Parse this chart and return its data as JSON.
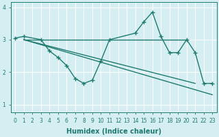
{
  "bg_color": "#d4eef2",
  "grid_color": "#c0dde2",
  "line_color": "#1e7a6e",
  "xlabel": "Humidex (Indice chaleur)",
  "xlim": [
    -0.5,
    23.5
  ],
  "ylim": [
    0.75,
    4.15
  ],
  "yticks": [
    1,
    2,
    3,
    4
  ],
  "xticks": [
    0,
    1,
    2,
    3,
    4,
    5,
    6,
    7,
    8,
    9,
    10,
    11,
    12,
    13,
    14,
    15,
    16,
    17,
    18,
    19,
    20,
    21,
    22,
    23
  ],
  "lines": [
    {
      "x": [
        1,
        20
      ],
      "y": [
        3.0,
        3.0
      ],
      "marker": null,
      "lw": 1.0
    },
    {
      "x": [
        1,
        23
      ],
      "y": [
        3.0,
        1.3
      ],
      "marker": null,
      "lw": 1.0
    },
    {
      "x": [
        1,
        21
      ],
      "y": [
        3.0,
        1.65
      ],
      "marker": null,
      "lw": 1.0
    },
    {
      "x": [
        0,
        1,
        3,
        4,
        5,
        6,
        7,
        8,
        9,
        10,
        11,
        14,
        15,
        16,
        17,
        18,
        19,
        20,
        21,
        22,
        23
      ],
      "y": [
        3.05,
        3.1,
        3.0,
        2.65,
        2.45,
        2.2,
        1.8,
        1.65,
        1.75,
        2.35,
        3.0,
        3.2,
        3.55,
        3.85,
        3.1,
        2.6,
        2.6,
        3.0,
        2.6,
        1.65,
        1.65
      ],
      "marker": "+",
      "lw": 1.0
    }
  ]
}
